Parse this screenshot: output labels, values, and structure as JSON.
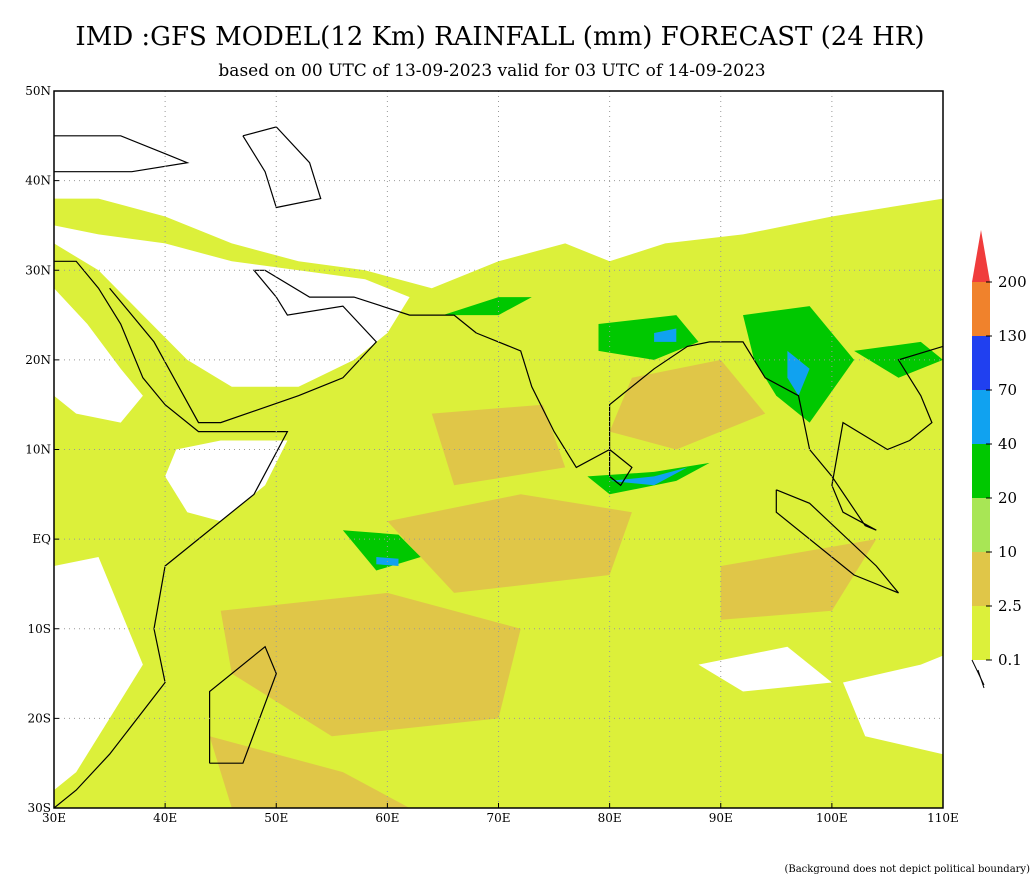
{
  "map": {
    "title": "IMD :GFS MODEL(12 Km) RAINFALL (mm) FORECAST (24 HR)",
    "subtitle": "based on 00 UTC of 13-09-2023 valid for 03 UTC of 14-09-2023",
    "xlim": [
      30,
      110
    ],
    "ylim": [
      -30,
      50
    ],
    "xticks": [
      {
        "value": 30,
        "label": "30E"
      },
      {
        "value": 40,
        "label": "40E"
      },
      {
        "value": 50,
        "label": "50E"
      },
      {
        "value": 60,
        "label": "60E"
      },
      {
        "value": 70,
        "label": "70E"
      },
      {
        "value": 80,
        "label": "80E"
      },
      {
        "value": 90,
        "label": "90E"
      },
      {
        "value": 100,
        "label": "100E"
      },
      {
        "value": 110,
        "label": "110E"
      }
    ],
    "yticks": [
      {
        "value": -30,
        "label": "30S"
      },
      {
        "value": -20,
        "label": "20S"
      },
      {
        "value": -10,
        "label": "10S"
      },
      {
        "value": 0,
        "label": "EQ"
      },
      {
        "value": 10,
        "label": "10N"
      },
      {
        "value": 20,
        "label": "20N"
      },
      {
        "value": 30,
        "label": "30N"
      },
      {
        "value": 40,
        "label": "40N"
      },
      {
        "value": 50,
        "label": "50N"
      }
    ],
    "legend": {
      "levels": [
        0.1,
        2.5,
        10,
        20,
        40,
        70,
        130,
        200
      ],
      "colors": [
        "#dcf03a",
        "#e0c648",
        "#a8e655",
        "#00c800",
        "#10a2f0",
        "#2040f0",
        "#f0822c",
        "#f03c3c"
      ]
    },
    "footnote": "(Background does not depict political boundary)"
  }
}
